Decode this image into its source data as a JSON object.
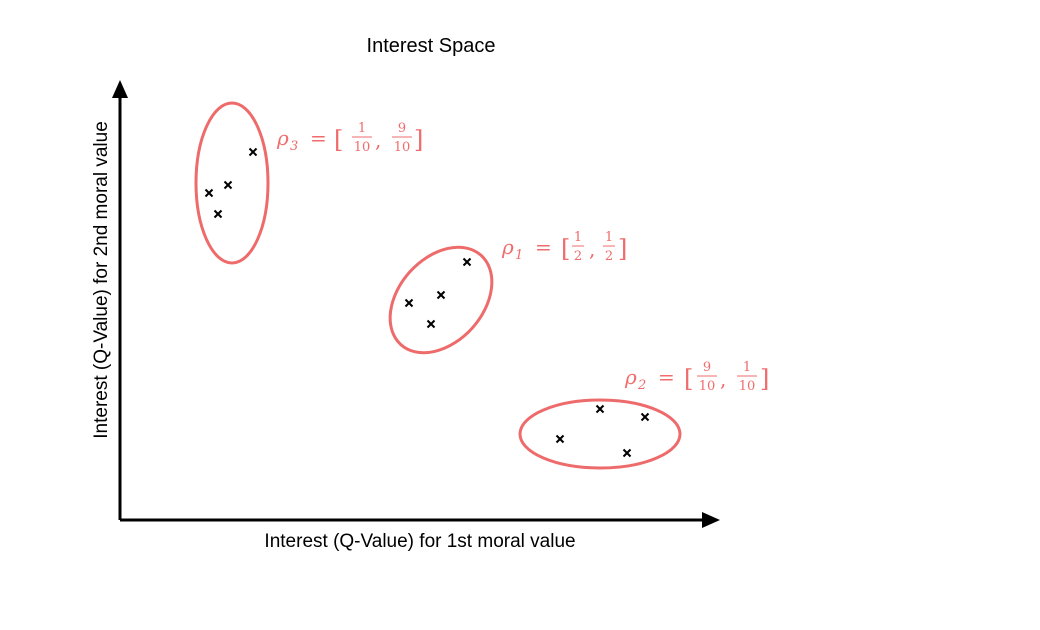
{
  "title": "Interest Space",
  "x_axis_label": "Interest (Q-Value) for 1st moral value",
  "y_axis_label": "Interest (Q-Value) for 2nd moral value",
  "colors": {
    "cluster": "#ee6b6b",
    "label": "#f06b6b",
    "axis": "#000000",
    "marker": "#000000"
  },
  "clusters": [
    {
      "id": "rho3",
      "symbol": "ρ",
      "subscript": "3",
      "equals": "=",
      "open_bracket": "[",
      "close_bracket": "]",
      "comma": ",",
      "w1_num": "1",
      "w1_den": "10",
      "w2_num": "9",
      "w2_den": "10"
    },
    {
      "id": "rho1",
      "symbol": "ρ",
      "subscript": "1",
      "equals": "=",
      "open_bracket": "[",
      "close_bracket": "]",
      "comma": ",",
      "w1_num": "1",
      "w1_den": "2",
      "w2_num": "1",
      "w2_den": "2"
    },
    {
      "id": "rho2",
      "symbol": "ρ",
      "subscript": "2",
      "equals": "=",
      "open_bracket": "[",
      "close_bracket": "]",
      "comma": ",",
      "w1_num": "9",
      "w1_den": "10",
      "w2_num": "1",
      "w2_den": "10"
    }
  ]
}
